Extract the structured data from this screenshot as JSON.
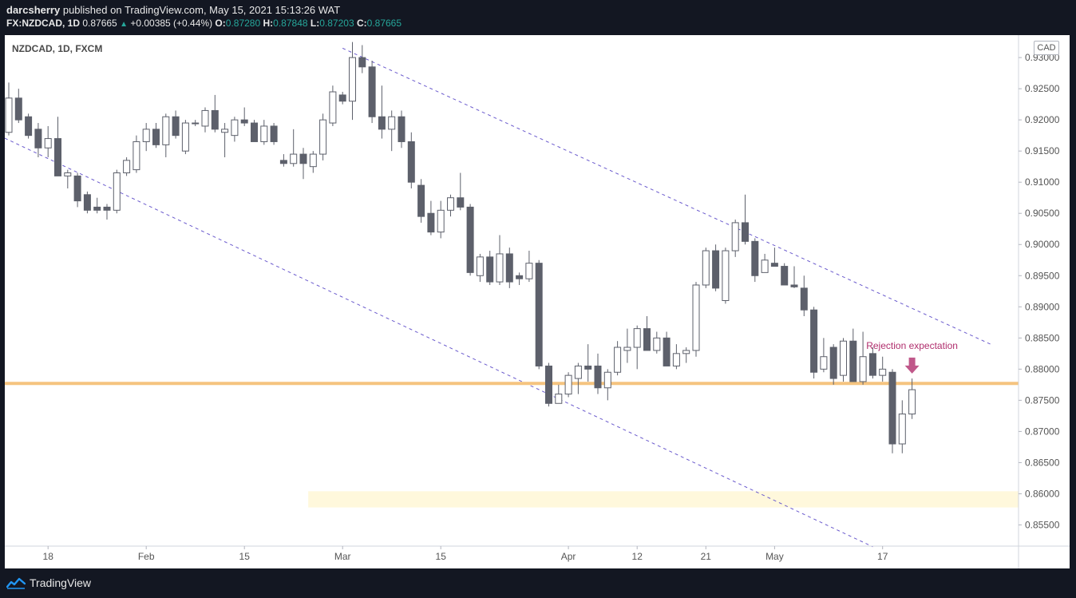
{
  "header": {
    "publisher": "darcsherry",
    "published_text": "published on TradingView.com, May 15, 2021 15:13:26 WAT",
    "symbol_line": "FX:NZDCAD, 1D",
    "last": "0.87665",
    "change": "+0.00385 (+0.44%)",
    "open_label": "O:",
    "open": "0.87280",
    "high_label": "H:",
    "high": "0.87848",
    "low_label": "L:",
    "low": "0.87203",
    "close_label": "C:",
    "close": "0.87665"
  },
  "symbol_label": "NZDCAD, 1D, FXCM",
  "currency": "CAD",
  "footer": {
    "brand": "TradingView"
  },
  "colors": {
    "bull_body": "#ffffff",
    "bear_body": "#5d606b",
    "candle_border": "#5d606b",
    "support_line": "#f5c47f",
    "channel_line": "#6a5acd",
    "target_zone": "#fff8dc",
    "annotation": "#b02e6d",
    "accent_up": "#26a69a"
  },
  "chart_data": {
    "type": "candlestick",
    "x_tick_labels": [
      {
        "label": "18",
        "index": 4
      },
      {
        "label": "Feb",
        "index": 14
      },
      {
        "label": "15",
        "index": 24
      },
      {
        "label": "Mar",
        "index": 34
      },
      {
        "label": "15",
        "index": 44
      },
      {
        "label": "Apr",
        "index": 57
      },
      {
        "label": "12",
        "index": 64
      },
      {
        "label": "21",
        "index": 71
      },
      {
        "label": "May",
        "index": 78
      },
      {
        "label": "17",
        "index": 89
      }
    ],
    "y_ticks": [
      "0.93000",
      "0.92500",
      "0.92000",
      "0.91500",
      "0.91000",
      "0.90500",
      "0.90000",
      "0.89500",
      "0.89000",
      "0.88500",
      "0.88000",
      "0.87500",
      "0.87000",
      "0.86500",
      "0.86000",
      "0.85500"
    ],
    "ylim": [
      0.8516,
      0.9336
    ],
    "candles": [
      {
        "o": 0.918,
        "h": 0.926,
        "l": 0.9175,
        "c": 0.9235
      },
      {
        "o": 0.9235,
        "h": 0.925,
        "l": 0.9195,
        "c": 0.92
      },
      {
        "o": 0.9205,
        "h": 0.921,
        "l": 0.917,
        "c": 0.9175
      },
      {
        "o": 0.9185,
        "h": 0.9195,
        "l": 0.914,
        "c": 0.9155
      },
      {
        "o": 0.9155,
        "h": 0.919,
        "l": 0.914,
        "c": 0.917
      },
      {
        "o": 0.917,
        "h": 0.9205,
        "l": 0.911,
        "c": 0.911
      },
      {
        "o": 0.911,
        "h": 0.912,
        "l": 0.909,
        "c": 0.9115
      },
      {
        "o": 0.911,
        "h": 0.9115,
        "l": 0.906,
        "c": 0.907
      },
      {
        "o": 0.908,
        "h": 0.9085,
        "l": 0.905,
        "c": 0.9055
      },
      {
        "o": 0.906,
        "h": 0.9075,
        "l": 0.905,
        "c": 0.9055
      },
      {
        "o": 0.906,
        "h": 0.9065,
        "l": 0.904,
        "c": 0.9055
      },
      {
        "o": 0.9055,
        "h": 0.912,
        "l": 0.905,
        "c": 0.9115
      },
      {
        "o": 0.9115,
        "h": 0.914,
        "l": 0.911,
        "c": 0.9135
      },
      {
        "o": 0.912,
        "h": 0.9175,
        "l": 0.9115,
        "c": 0.9165
      },
      {
        "o": 0.9165,
        "h": 0.9195,
        "l": 0.915,
        "c": 0.9185
      },
      {
        "o": 0.9185,
        "h": 0.9195,
        "l": 0.9155,
        "c": 0.916
      },
      {
        "o": 0.916,
        "h": 0.921,
        "l": 0.914,
        "c": 0.9205
      },
      {
        "o": 0.9205,
        "h": 0.9215,
        "l": 0.917,
        "c": 0.9175
      },
      {
        "o": 0.915,
        "h": 0.92,
        "l": 0.9145,
        "c": 0.9195
      },
      {
        "o": 0.9195,
        "h": 0.92,
        "l": 0.919,
        "c": 0.9195
      },
      {
        "o": 0.919,
        "h": 0.922,
        "l": 0.918,
        "c": 0.9215
      },
      {
        "o": 0.9215,
        "h": 0.924,
        "l": 0.918,
        "c": 0.9185
      },
      {
        "o": 0.918,
        "h": 0.9195,
        "l": 0.914,
        "c": 0.9185
      },
      {
        "o": 0.9175,
        "h": 0.9205,
        "l": 0.9165,
        "c": 0.92
      },
      {
        "o": 0.92,
        "h": 0.922,
        "l": 0.919,
        "c": 0.9195
      },
      {
        "o": 0.9195,
        "h": 0.92,
        "l": 0.9165,
        "c": 0.9165
      },
      {
        "o": 0.9165,
        "h": 0.92,
        "l": 0.916,
        "c": 0.919
      },
      {
        "o": 0.919,
        "h": 0.9195,
        "l": 0.916,
        "c": 0.9165
      },
      {
        "o": 0.9135,
        "h": 0.9145,
        "l": 0.9125,
        "c": 0.913
      },
      {
        "o": 0.913,
        "h": 0.9185,
        "l": 0.9125,
        "c": 0.9145
      },
      {
        "o": 0.9145,
        "h": 0.9155,
        "l": 0.9105,
        "c": 0.913
      },
      {
        "o": 0.9125,
        "h": 0.915,
        "l": 0.9115,
        "c": 0.9145
      },
      {
        "o": 0.9145,
        "h": 0.921,
        "l": 0.9135,
        "c": 0.92
      },
      {
        "o": 0.9195,
        "h": 0.9255,
        "l": 0.919,
        "c": 0.9245
      },
      {
        "o": 0.924,
        "h": 0.9245,
        "l": 0.9225,
        "c": 0.923
      },
      {
        "o": 0.923,
        "h": 0.9325,
        "l": 0.92,
        "c": 0.93
      },
      {
        "o": 0.93,
        "h": 0.932,
        "l": 0.9275,
        "c": 0.9285
      },
      {
        "o": 0.9285,
        "h": 0.9295,
        "l": 0.9195,
        "c": 0.9205
      },
      {
        "o": 0.9205,
        "h": 0.9255,
        "l": 0.917,
        "c": 0.9185
      },
      {
        "o": 0.9185,
        "h": 0.9215,
        "l": 0.915,
        "c": 0.9205
      },
      {
        "o": 0.9205,
        "h": 0.9215,
        "l": 0.9155,
        "c": 0.9165
      },
      {
        "o": 0.9165,
        "h": 0.918,
        "l": 0.909,
        "c": 0.91
      },
      {
        "o": 0.9095,
        "h": 0.9105,
        "l": 0.9035,
        "c": 0.9045
      },
      {
        "o": 0.905,
        "h": 0.907,
        "l": 0.9015,
        "c": 0.902
      },
      {
        "o": 0.902,
        "h": 0.907,
        "l": 0.901,
        "c": 0.9055
      },
      {
        "o": 0.9055,
        "h": 0.908,
        "l": 0.9045,
        "c": 0.9075
      },
      {
        "o": 0.9075,
        "h": 0.9115,
        "l": 0.9055,
        "c": 0.906
      },
      {
        "o": 0.906,
        "h": 0.9065,
        "l": 0.895,
        "c": 0.8955
      },
      {
        "o": 0.895,
        "h": 0.8985,
        "l": 0.894,
        "c": 0.898
      },
      {
        "o": 0.898,
        "h": 0.899,
        "l": 0.8935,
        "c": 0.894
      },
      {
        "o": 0.894,
        "h": 0.9015,
        "l": 0.8935,
        "c": 0.8985
      },
      {
        "o": 0.8985,
        "h": 0.8995,
        "l": 0.893,
        "c": 0.894
      },
      {
        "o": 0.895,
        "h": 0.8955,
        "l": 0.8935,
        "c": 0.8945
      },
      {
        "o": 0.8945,
        "h": 0.899,
        "l": 0.894,
        "c": 0.897
      },
      {
        "o": 0.897,
        "h": 0.8975,
        "l": 0.88,
        "c": 0.8805
      },
      {
        "o": 0.8805,
        "h": 0.881,
        "l": 0.874,
        "c": 0.8745
      },
      {
        "o": 0.8745,
        "h": 0.8775,
        "l": 0.8745,
        "c": 0.876
      },
      {
        "o": 0.876,
        "h": 0.8795,
        "l": 0.8755,
        "c": 0.879
      },
      {
        "o": 0.8785,
        "h": 0.881,
        "l": 0.876,
        "c": 0.8805
      },
      {
        "o": 0.8805,
        "h": 0.884,
        "l": 0.878,
        "c": 0.88
      },
      {
        "o": 0.8805,
        "h": 0.8825,
        "l": 0.876,
        "c": 0.877
      },
      {
        "o": 0.877,
        "h": 0.88,
        "l": 0.875,
        "c": 0.8795
      },
      {
        "o": 0.8795,
        "h": 0.8845,
        "l": 0.879,
        "c": 0.8835
      },
      {
        "o": 0.883,
        "h": 0.8865,
        "l": 0.881,
        "c": 0.8835
      },
      {
        "o": 0.8835,
        "h": 0.887,
        "l": 0.88,
        "c": 0.8865
      },
      {
        "o": 0.8865,
        "h": 0.8885,
        "l": 0.883,
        "c": 0.883
      },
      {
        "o": 0.883,
        "h": 0.886,
        "l": 0.8825,
        "c": 0.885
      },
      {
        "o": 0.885,
        "h": 0.886,
        "l": 0.8805,
        "c": 0.8805
      },
      {
        "o": 0.8805,
        "h": 0.884,
        "l": 0.88,
        "c": 0.8825
      },
      {
        "o": 0.8825,
        "h": 0.8835,
        "l": 0.881,
        "c": 0.883
      },
      {
        "o": 0.883,
        "h": 0.894,
        "l": 0.882,
        "c": 0.8935
      },
      {
        "o": 0.8935,
        "h": 0.8995,
        "l": 0.893,
        "c": 0.899
      },
      {
        "o": 0.899,
        "h": 0.9,
        "l": 0.8925,
        "c": 0.893
      },
      {
        "o": 0.891,
        "h": 0.8995,
        "l": 0.8905,
        "c": 0.899
      },
      {
        "o": 0.899,
        "h": 0.904,
        "l": 0.898,
        "c": 0.9035
      },
      {
        "o": 0.9035,
        "h": 0.908,
        "l": 0.9,
        "c": 0.9005
      },
      {
        "o": 0.9005,
        "h": 0.901,
        "l": 0.894,
        "c": 0.895
      },
      {
        "o": 0.8955,
        "h": 0.8985,
        "l": 0.8955,
        "c": 0.8975
      },
      {
        "o": 0.897,
        "h": 0.8995,
        "l": 0.8965,
        "c": 0.8965
      },
      {
        "o": 0.8965,
        "h": 0.897,
        "l": 0.8935,
        "c": 0.8935
      },
      {
        "o": 0.8935,
        "h": 0.8965,
        "l": 0.893,
        "c": 0.8932
      },
      {
        "o": 0.893,
        "h": 0.895,
        "l": 0.8885,
        "c": 0.8895
      },
      {
        "o": 0.8895,
        "h": 0.89,
        "l": 0.8785,
        "c": 0.8795
      },
      {
        "o": 0.88,
        "h": 0.885,
        "l": 0.8795,
        "c": 0.882
      },
      {
        "o": 0.8835,
        "h": 0.884,
        "l": 0.8775,
        "c": 0.8785
      },
      {
        "o": 0.879,
        "h": 0.885,
        "l": 0.878,
        "c": 0.8845
      },
      {
        "o": 0.8845,
        "h": 0.8865,
        "l": 0.878,
        "c": 0.878
      },
      {
        "o": 0.878,
        "h": 0.886,
        "l": 0.8775,
        "c": 0.882
      },
      {
        "o": 0.8825,
        "h": 0.8835,
        "l": 0.8785,
        "c": 0.879
      },
      {
        "o": 0.879,
        "h": 0.882,
        "l": 0.878,
        "c": 0.88
      },
      {
        "o": 0.8795,
        "h": 0.88,
        "l": 0.8665,
        "c": 0.868
      },
      {
        "o": 0.868,
        "h": 0.875,
        "l": 0.8665,
        "c": 0.8728
      },
      {
        "o": 0.8728,
        "h": 0.8785,
        "l": 0.872,
        "c": 0.8767
      }
    ],
    "support_level": 0.8777,
    "target_zone": [
      0.8578,
      0.8604
    ],
    "channel_upper": [
      {
        "index": 34,
        "price": 0.9315
      },
      {
        "index": 100,
        "price": 0.884
      }
    ],
    "channel_lower": [
      {
        "index": -1,
        "price": 0.9175
      },
      {
        "index": 88,
        "price": 0.8515
      }
    ],
    "annotation": {
      "text": "Rejection expectation",
      "index": 92,
      "price": 0.8798
    }
  }
}
